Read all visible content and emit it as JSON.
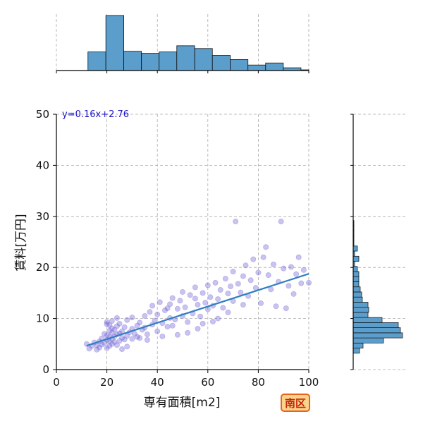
{
  "district_label": "南区",
  "colors": {
    "scatter_fill": "#4b3cc7",
    "scatter_edge": "#9a90e6",
    "regression_line": "#2f7fc1",
    "hist_fill": "#5b9dcb",
    "hist_edge": "#111111",
    "grid": "#aaaaaa",
    "equation_text": "#1a14c8",
    "badge_bg": "#fbd38b",
    "badge_border": "#e8621c",
    "badge_text": "#c0260a"
  },
  "chart_data": [
    {
      "type": "scatter",
      "name": "main",
      "xlabel": "専有面積[m2]",
      "ylabel": "賃料[万円]",
      "xlim": [
        0,
        100
      ],
      "ylim": [
        0,
        50
      ],
      "x_ticks": [
        0,
        20,
        40,
        60,
        80,
        100
      ],
      "y_ticks": [
        0,
        10,
        20,
        30,
        40,
        50
      ],
      "grid": true,
      "annotation": "y=0.16x+2.76",
      "regression": {
        "slope": 0.16,
        "intercept": 2.76,
        "x_range": [
          12,
          100
        ]
      },
      "points": [
        [
          12,
          5.0
        ],
        [
          13,
          4.1
        ],
        [
          14,
          4.6
        ],
        [
          15,
          5.3
        ],
        [
          16,
          3.9
        ],
        [
          16,
          4.8
        ],
        [
          17,
          5.5
        ],
        [
          17,
          4.3
        ],
        [
          18,
          6.1
        ],
        [
          18,
          4.9
        ],
        [
          19,
          5.2
        ],
        [
          19,
          7.0
        ],
        [
          20,
          4.2
        ],
        [
          20,
          5.8
        ],
        [
          20,
          6.7
        ],
        [
          20,
          8.9
        ],
        [
          20,
          9.3
        ],
        [
          21,
          4.6
        ],
        [
          21,
          5.5
        ],
        [
          21,
          6.4
        ],
        [
          21,
          7.6
        ],
        [
          21,
          8.7
        ],
        [
          22,
          5.0
        ],
        [
          22,
          6.0
        ],
        [
          22,
          7.2
        ],
        [
          22,
          8.1
        ],
        [
          22,
          9.5
        ],
        [
          23,
          5.4
        ],
        [
          23,
          6.5
        ],
        [
          23,
          7.8
        ],
        [
          24,
          4.8
        ],
        [
          24,
          6.9
        ],
        [
          24,
          8.5
        ],
        [
          25,
          5.6
        ],
        [
          25,
          7.1
        ],
        [
          25,
          9.0
        ],
        [
          26,
          6.2
        ],
        [
          26,
          7.5
        ],
        [
          27,
          5.9
        ],
        [
          27,
          8.3
        ],
        [
          28,
          6.6
        ],
        [
          28,
          9.7
        ],
        [
          29,
          7.3
        ],
        [
          30,
          6.0
        ],
        [
          30,
          8.0
        ],
        [
          30,
          10.2
        ],
        [
          31,
          7.0
        ],
        [
          32,
          8.6
        ],
        [
          32,
          6.4
        ],
        [
          33,
          9.2
        ],
        [
          34,
          7.8
        ],
        [
          35,
          10.5
        ],
        [
          35,
          8.2
        ],
        [
          36,
          6.9
        ],
        [
          37,
          11.3
        ],
        [
          38,
          8.8
        ],
        [
          38,
          12.5
        ],
        [
          39,
          9.6
        ],
        [
          40,
          7.5
        ],
        [
          40,
          10.8
        ],
        [
          41,
          13.2
        ],
        [
          42,
          9.1
        ],
        [
          43,
          11.6
        ],
        [
          44,
          8.4
        ],
        [
          45,
          12.8
        ],
        [
          45,
          10.1
        ],
        [
          46,
          14.0
        ],
        [
          47,
          9.8
        ],
        [
          48,
          11.9
        ],
        [
          49,
          13.5
        ],
        [
          50,
          10.5
        ],
        [
          50,
          15.2
        ],
        [
          51,
          12.2
        ],
        [
          52,
          9.3
        ],
        [
          53,
          14.6
        ],
        [
          54,
          11.0
        ],
        [
          55,
          13.9
        ],
        [
          55,
          16.1
        ],
        [
          56,
          12.7
        ],
        [
          57,
          10.4
        ],
        [
          58,
          15.0
        ],
        [
          59,
          13.1
        ],
        [
          60,
          11.8
        ],
        [
          60,
          16.5
        ],
        [
          61,
          14.2
        ],
        [
          62,
          12.5
        ],
        [
          63,
          17.0
        ],
        [
          64,
          13.8
        ],
        [
          65,
          15.6
        ],
        [
          66,
          12.1
        ],
        [
          67,
          17.8
        ],
        [
          68,
          14.9
        ],
        [
          69,
          16.3
        ],
        [
          70,
          13.4
        ],
        [
          70,
          19.2
        ],
        [
          71,
          29.0
        ],
        [
          72,
          16.8
        ],
        [
          73,
          15.1
        ],
        [
          74,
          18.3
        ],
        [
          75,
          20.4
        ],
        [
          76,
          14.4
        ],
        [
          77,
          17.5
        ],
        [
          78,
          21.6
        ],
        [
          79,
          16.0
        ],
        [
          80,
          19.0
        ],
        [
          81,
          13.0
        ],
        [
          82,
          22.0
        ],
        [
          83,
          24.0
        ],
        [
          84,
          18.5
        ],
        [
          85,
          15.7
        ],
        [
          86,
          20.6
        ],
        [
          87,
          12.4
        ],
        [
          88,
          17.2
        ],
        [
          89,
          29.0
        ],
        [
          90,
          19.8
        ],
        [
          91,
          12.0
        ],
        [
          92,
          16.4
        ],
        [
          93,
          20.1
        ],
        [
          94,
          14.8
        ],
        [
          95,
          18.7
        ],
        [
          96,
          22.0
        ],
        [
          97,
          16.9
        ],
        [
          98,
          19.5
        ],
        [
          100,
          17.0
        ],
        [
          46,
          8.6
        ],
        [
          52,
          7.2
        ],
        [
          58,
          9.0
        ],
        [
          64,
          10.0
        ],
        [
          42,
          6.5
        ],
        [
          36,
          5.8
        ],
        [
          33,
          6.2
        ],
        [
          28,
          4.5
        ],
        [
          26,
          4.0
        ],
        [
          24,
          10.1
        ],
        [
          44,
          12.0
        ],
        [
          48,
          6.8
        ],
        [
          56,
          8.0
        ],
        [
          62,
          9.4
        ],
        [
          68,
          11.2
        ],
        [
          74,
          12.7
        ]
      ]
    },
    {
      "type": "bar",
      "name": "top-histogram",
      "x_bin_edges": [
        12.5,
        19.6,
        26.7,
        33.7,
        40.7,
        47.7,
        54.8,
        61.8,
        68.9,
        75.9,
        82.9,
        89.9,
        96.9,
        100
      ],
      "values": [
        27,
        80,
        28,
        25,
        27,
        36,
        32,
        22,
        16,
        8,
        11,
        4,
        1
      ],
      "value_max": 82,
      "xlim": [
        0,
        100
      ],
      "x_ticks": [
        0,
        20,
        40,
        60,
        80,
        100
      ],
      "grid": true
    },
    {
      "type": "bar",
      "name": "right-histogram",
      "orientation": "horizontal",
      "y_bin_edges": [
        3.2,
        4.2,
        5.2,
        6.2,
        7.2,
        8.2,
        9.2,
        10.2,
        11.2,
        12.2,
        13.2,
        14.2,
        15.2,
        16.2,
        17.2,
        18.2,
        19.2,
        20.2,
        21.2,
        22.2,
        23.2,
        24.2,
        25.2,
        26.2,
        27.2,
        28.2,
        29.2
      ],
      "values": [
        9,
        14,
        43,
        70,
        67,
        64,
        41,
        21,
        22,
        21,
        13,
        12,
        10,
        8,
        8,
        8,
        6,
        2,
        8,
        2,
        6,
        1,
        1,
        1,
        1,
        1
      ],
      "value_max": 76,
      "ylim": [
        0,
        50
      ],
      "y_ticks": [
        0,
        10,
        20,
        30,
        40,
        50
      ],
      "grid": true
    }
  ]
}
